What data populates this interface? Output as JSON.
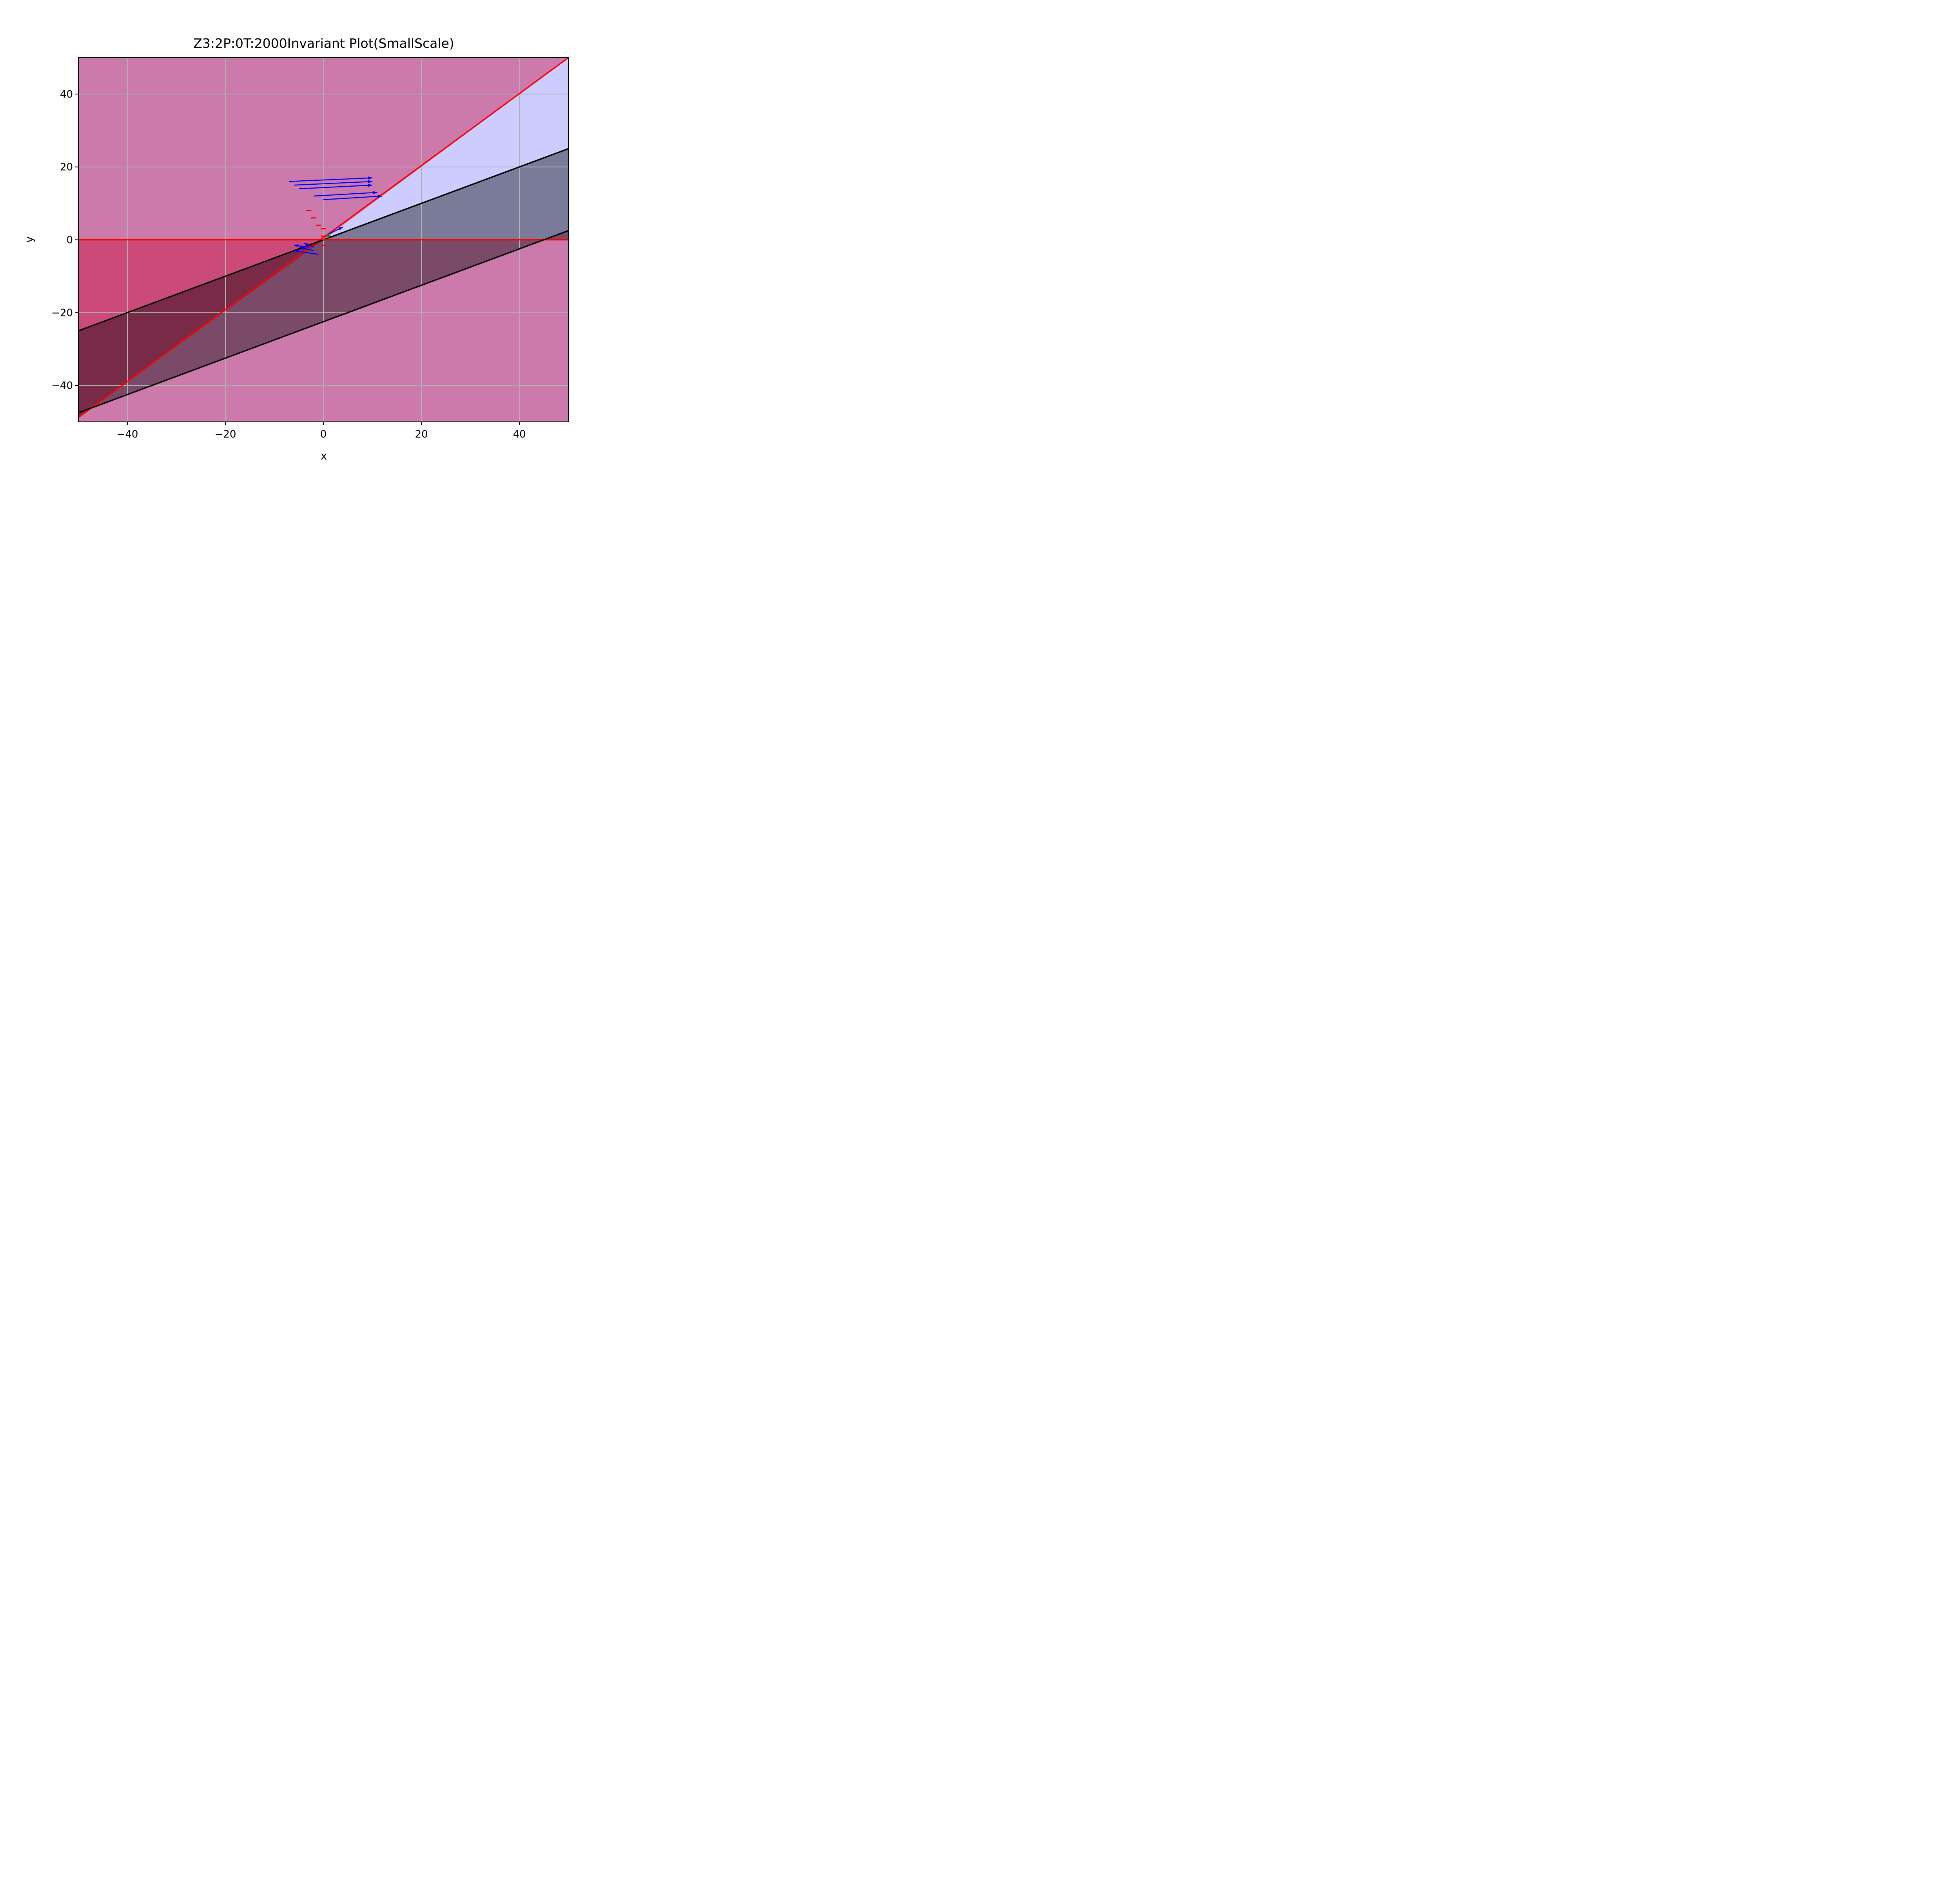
{
  "chart_data": {
    "type": "line",
    "title": "Z3:2P:0T:2000Invariant Plot(SmallScale)",
    "xlabel": "x",
    "ylabel": "y",
    "xlim": [
      -50,
      50
    ],
    "ylim": [
      -50,
      50
    ],
    "grid": true,
    "x_ticks": [
      -40,
      -20,
      0,
      20,
      40
    ],
    "y_ticks": [
      -40,
      -20,
      0,
      20,
      40
    ],
    "x_tick_labels": [
      "−40",
      "−20",
      "0",
      "20",
      "40"
    ],
    "y_tick_labels": [
      "−40",
      "−20",
      "0",
      "20",
      "40"
    ],
    "background_color": "#cc79ab",
    "regions": [
      {
        "name": "red-region",
        "color": "#cb4a78",
        "polygon": [
          [
            -50,
            0
          ],
          [
            0,
            0
          ],
          [
            -50,
            -48.8
          ]
        ]
      },
      {
        "name": "light-blue-region",
        "color": "#ccccff",
        "polygon": [
          [
            0,
            0
          ],
          [
            50,
            50
          ],
          [
            50,
            25
          ]
        ]
      },
      {
        "name": "slate-region",
        "color": "#7a7b98",
        "polygon": [
          [
            0,
            0
          ],
          [
            50,
            25
          ],
          [
            50,
            0
          ]
        ]
      },
      {
        "name": "dark-purple-region",
        "color": "#7b4a68",
        "polygon": [
          [
            0,
            0
          ],
          [
            50,
            0
          ],
          [
            50,
            2.5
          ],
          [
            -50,
            -47.5
          ]
        ]
      },
      {
        "name": "dark-maroon-region",
        "color": "#782a47",
        "polygon": [
          [
            -50,
            -25
          ],
          [
            0,
            0
          ],
          [
            -50,
            -48.8
          ]
        ]
      }
    ],
    "lines": [
      {
        "name": "red-horizontal-line",
        "color": "#ff0000",
        "points": [
          [
            -50,
            0
          ],
          [
            50,
            0
          ]
        ]
      },
      {
        "name": "red-diagonal-line",
        "color": "#ff0000",
        "points": [
          [
            -50,
            -48.8
          ],
          [
            50,
            50
          ]
        ]
      },
      {
        "name": "black-upper-line",
        "color": "#000000",
        "points": [
          [
            -50,
            -25
          ],
          [
            50,
            25
          ]
        ]
      },
      {
        "name": "black-lower-line",
        "color": "#000000",
        "points": [
          [
            -50,
            -47.5
          ],
          [
            50,
            2.5
          ]
        ]
      }
    ],
    "arrows": {
      "color": "#0000ff",
      "items": [
        {
          "from": [
            -7,
            16
          ],
          "to": [
            10,
            17
          ]
        },
        {
          "from": [
            -6,
            15
          ],
          "to": [
            10,
            16
          ]
        },
        {
          "from": [
            -5,
            14
          ],
          "to": [
            10,
            15
          ]
        },
        {
          "from": [
            -2,
            12
          ],
          "to": [
            11,
            13
          ]
        },
        {
          "from": [
            0,
            11
          ],
          "to": [
            12,
            12
          ]
        },
        {
          "from": [
            1,
            1.5
          ],
          "to": [
            4,
            3.5
          ]
        },
        {
          "from": [
            -1,
            -4
          ],
          "to": [
            -6,
            -3
          ]
        },
        {
          "from": [
            -2,
            -3
          ],
          "to": [
            -5,
            -2
          ]
        },
        {
          "from": [
            -3,
            -2
          ],
          "to": [
            -6,
            -1.5
          ]
        },
        {
          "from": [
            -2,
            -2
          ],
          "to": [
            -4,
            -1
          ]
        }
      ]
    },
    "red_dashes": {
      "color": "#ff0000",
      "points": [
        [
          -3,
          8
        ],
        [
          -2,
          6
        ],
        [
          -1,
          4
        ],
        [
          0,
          3
        ],
        [
          0,
          1
        ],
        [
          0,
          0
        ],
        [
          0,
          -1.5
        ]
      ]
    },
    "marker": {
      "symbol": "+",
      "color": "#008000",
      "point": [
        1,
        1
      ]
    },
    "frame_color": "#000000",
    "grid_color": "#b0b0b0"
  }
}
